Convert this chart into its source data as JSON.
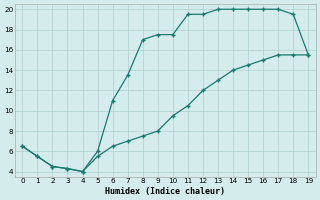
{
  "xlabel": "Humidex (Indice chaleur)",
  "background_color": "#d4ecec",
  "line_color": "#1a7a6e",
  "xlim": [
    -0.5,
    19.5
  ],
  "ylim": [
    3.5,
    20.5
  ],
  "xticks": [
    0,
    1,
    2,
    3,
    4,
    5,
    6,
    7,
    8,
    9,
    10,
    11,
    12,
    13,
    14,
    15,
    16,
    17,
    18,
    19
  ],
  "yticks": [
    4,
    6,
    8,
    10,
    12,
    14,
    16,
    18,
    20
  ],
  "upper_x": [
    0,
    1,
    2,
    3,
    4,
    5,
    6,
    7,
    8,
    9,
    10,
    11,
    12,
    13,
    14,
    15,
    16,
    17,
    18,
    19
  ],
  "upper_y": [
    6.5,
    5.5,
    4.5,
    4.3,
    4.0,
    6.0,
    11.0,
    13.5,
    17.0,
    17.5,
    17.5,
    19.5,
    19.5,
    20.0,
    20.0,
    20.0,
    20.0,
    20.0,
    19.5,
    15.5
  ],
  "lower_x": [
    0,
    1,
    2,
    3,
    4,
    5,
    6,
    7,
    8,
    9,
    10,
    11,
    12,
    13,
    14,
    15,
    16,
    17,
    18,
    19
  ],
  "lower_y": [
    6.5,
    5.5,
    4.5,
    4.3,
    4.0,
    5.5,
    6.5,
    7.0,
    7.5,
    8.0,
    9.5,
    10.5,
    12.0,
    13.0,
    14.0,
    14.5,
    15.0,
    15.5,
    15.5,
    15.5
  ]
}
